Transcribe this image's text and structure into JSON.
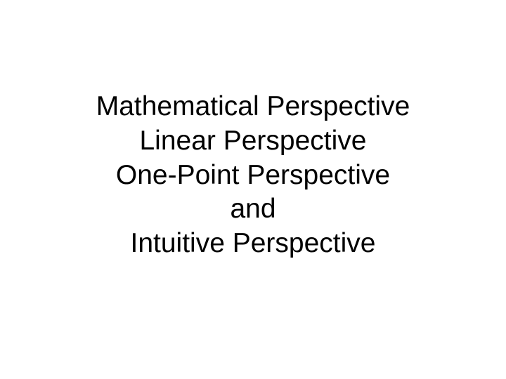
{
  "slide": {
    "lines": {
      "line1": "Mathematical Perspective",
      "line2": "Linear Perspective",
      "line3": "One-Point Perspective",
      "line4": "and",
      "line5": "Intuitive Perspective"
    },
    "background_color": "#ffffff",
    "text_color": "#000000",
    "font_size": 39,
    "font_family": "Arial, Helvetica, sans-serif",
    "line_height": 1.25,
    "alignment": "center"
  }
}
